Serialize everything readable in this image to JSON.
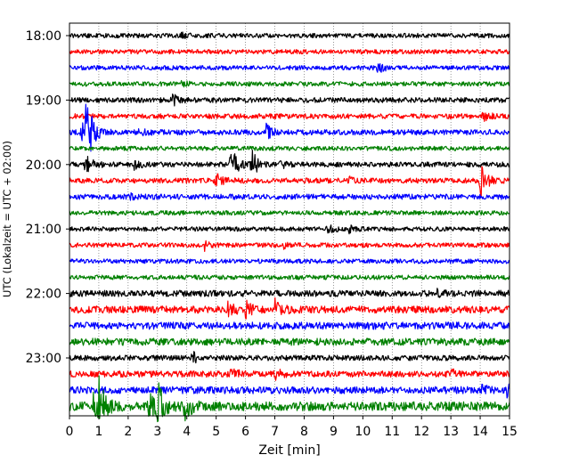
{
  "chart_data": {
    "type": "line",
    "title": "",
    "xlabel": "Zeit  [min]",
    "ylabel": "UTC (Lokalzeit = UTC + 02:00)",
    "xlim": [
      0,
      15
    ],
    "x_ticks": [
      0,
      1,
      2,
      3,
      4,
      5,
      6,
      7,
      8,
      9,
      10,
      11,
      12,
      13,
      14,
      15
    ],
    "y_tick_labels": [
      "18:00",
      "19:00",
      "20:00",
      "21:00",
      "22:00",
      "23:00"
    ],
    "y_tick_trace_index": [
      0,
      4,
      8,
      12,
      16,
      20
    ],
    "trace_interval_minutes": 15,
    "trace_count": 24,
    "grid": "vertical dotted at each minute",
    "trace_colors": [
      "#000000",
      "#ff0000",
      "#0000ff",
      "#008000"
    ],
    "series": [
      {
        "start": "18:00",
        "color": "#000000",
        "noise": 2.5,
        "events": [
          {
            "t": 3.8,
            "amp": 3
          }
        ]
      },
      {
        "start": "18:15",
        "color": "#ff0000",
        "noise": 2.5,
        "events": []
      },
      {
        "start": "18:30",
        "color": "#0000ff",
        "noise": 2.5,
        "events": [
          {
            "t": 10.5,
            "amp": 6
          }
        ]
      },
      {
        "start": "18:45",
        "color": "#008000",
        "noise": 2.5,
        "events": [
          {
            "t": 3.8,
            "amp": 3
          }
        ]
      },
      {
        "start": "19:00",
        "color": "#000000",
        "noise": 2.8,
        "events": [
          {
            "t": 3.5,
            "amp": 6
          }
        ]
      },
      {
        "start": "19:15",
        "color": "#ff0000",
        "noise": 2.8,
        "events": [
          {
            "t": 14.1,
            "amp": 5
          }
        ]
      },
      {
        "start": "19:30",
        "color": "#0000ff",
        "noise": 3,
        "events": [
          {
            "t": 0.4,
            "amp": 14
          },
          {
            "t": 0.55,
            "amp": 45
          },
          {
            "t": 2.4,
            "amp": 5
          },
          {
            "t": 6.7,
            "amp": 8
          }
        ]
      },
      {
        "start": "19:45",
        "color": "#008000",
        "noise": 2.5,
        "events": []
      },
      {
        "start": "20:00",
        "color": "#000000",
        "noise": 2.8,
        "events": [
          {
            "t": 0.55,
            "amp": 14
          },
          {
            "t": 2.2,
            "amp": 4
          },
          {
            "t": 5.5,
            "amp": 22
          },
          {
            "t": 6.2,
            "amp": 16
          },
          {
            "t": 7.2,
            "amp": 4
          }
        ]
      },
      {
        "start": "20:15",
        "color": "#ff0000",
        "noise": 2.8,
        "events": [
          {
            "t": 5.0,
            "amp": 8
          },
          {
            "t": 9.5,
            "amp": 4
          },
          {
            "t": 14.0,
            "amp": 22
          }
        ]
      },
      {
        "start": "20:30",
        "color": "#0000ff",
        "noise": 3,
        "events": [
          {
            "t": 2.0,
            "amp": 3
          }
        ]
      },
      {
        "start": "20:45",
        "color": "#008000",
        "noise": 2.5,
        "events": []
      },
      {
        "start": "21:00",
        "color": "#000000",
        "noise": 2.5,
        "events": [
          {
            "t": 8.8,
            "amp": 5
          },
          {
            "t": 9.5,
            "amp": 4
          }
        ]
      },
      {
        "start": "21:15",
        "color": "#ff0000",
        "noise": 2.5,
        "events": [
          {
            "t": 4.6,
            "amp": 5
          },
          {
            "t": 7.3,
            "amp": 3
          }
        ]
      },
      {
        "start": "21:30",
        "color": "#0000ff",
        "noise": 2.5,
        "events": []
      },
      {
        "start": "21:45",
        "color": "#008000",
        "noise": 2.5,
        "events": []
      },
      {
        "start": "22:00",
        "color": "#000000",
        "noise": 3.5,
        "events": [
          {
            "t": 12.5,
            "amp": 3
          }
        ]
      },
      {
        "start": "22:15",
        "color": "#ff0000",
        "noise": 4,
        "events": [
          {
            "t": 5.4,
            "amp": 8
          },
          {
            "t": 6.0,
            "amp": 8
          },
          {
            "t": 7.0,
            "amp": 10
          }
        ]
      },
      {
        "start": "22:30",
        "color": "#0000ff",
        "noise": 4,
        "events": [
          {
            "t": 10.0,
            "amp": 4
          }
        ]
      },
      {
        "start": "22:45",
        "color": "#008000",
        "noise": 4,
        "events": []
      },
      {
        "start": "23:00",
        "color": "#000000",
        "noise": 3,
        "events": [
          {
            "t": 4.2,
            "amp": 6
          }
        ]
      },
      {
        "start": "23:15",
        "color": "#ff0000",
        "noise": 3.5,
        "events": [
          {
            "t": 5.5,
            "amp": 6
          },
          {
            "t": 7.0,
            "amp": 5
          },
          {
            "t": 13.0,
            "amp": 4
          }
        ]
      },
      {
        "start": "23:30",
        "color": "#0000ff",
        "noise": 4,
        "events": [
          {
            "t": 14.0,
            "amp": 6
          },
          {
            "t": 14.9,
            "amp": 8
          }
        ]
      },
      {
        "start": "23:45",
        "color": "#008000",
        "noise": 5,
        "events": [
          {
            "t": 0.8,
            "amp": 14
          },
          {
            "t": 1.0,
            "amp": 32
          },
          {
            "t": 2.7,
            "amp": 14
          },
          {
            "t": 3.0,
            "amp": 30
          },
          {
            "t": 3.9,
            "amp": 18
          }
        ]
      }
    ]
  }
}
